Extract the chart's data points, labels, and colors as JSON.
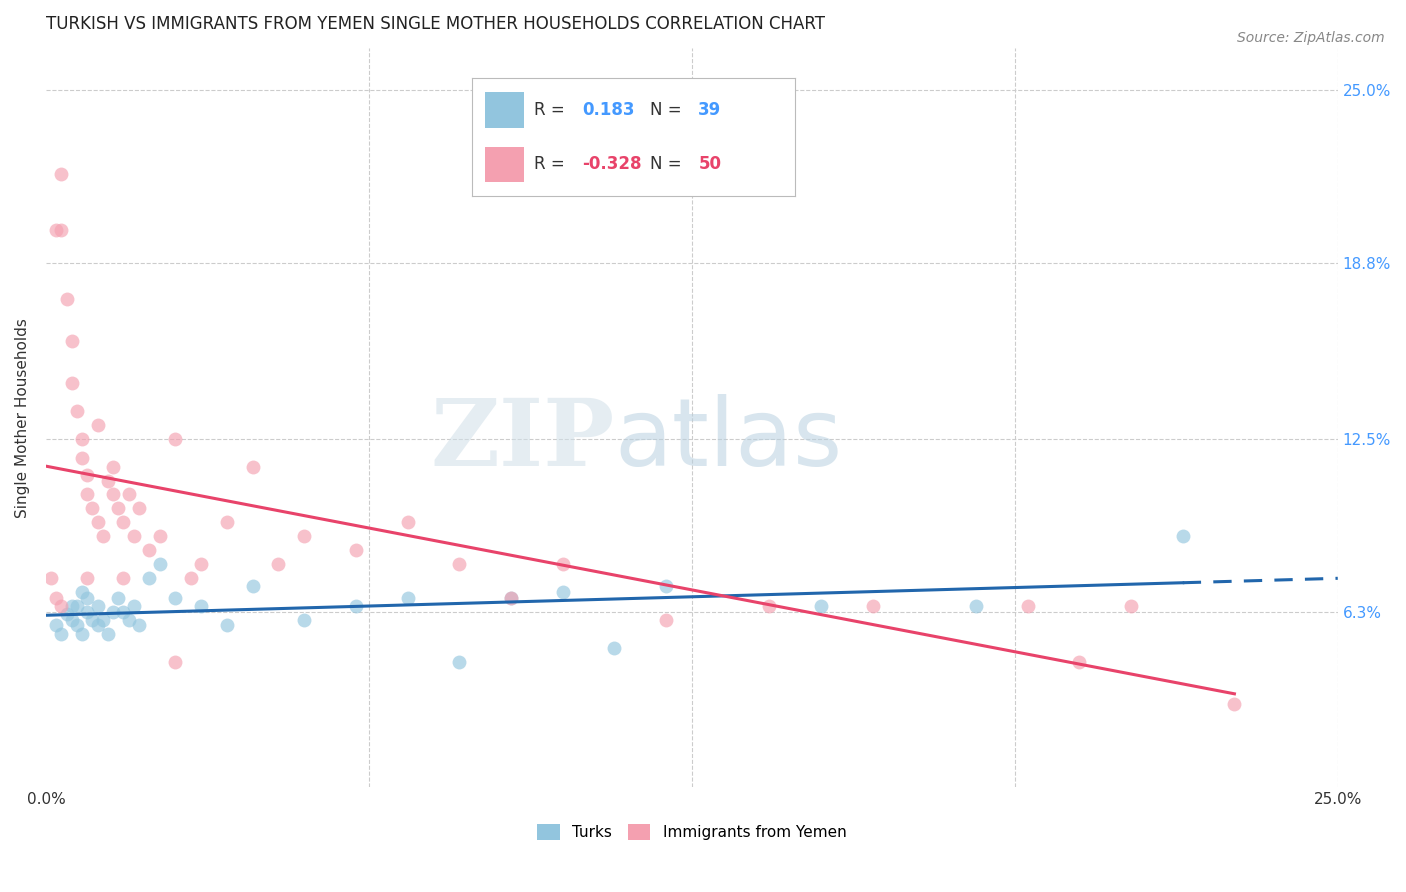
{
  "title": "TURKISH VS IMMIGRANTS FROM YEMEN SINGLE MOTHER HOUSEHOLDS CORRELATION CHART",
  "source": "Source: ZipAtlas.com",
  "ylabel": "Single Mother Households",
  "xlim": [
    0.0,
    0.25
  ],
  "ylim": [
    0.0,
    0.265
  ],
  "yticks": [
    0.0,
    0.063,
    0.125,
    0.188,
    0.25
  ],
  "ytick_labels_right": [
    "",
    "6.3%",
    "12.5%",
    "18.8%",
    "25.0%"
  ],
  "xticks": [
    0.0,
    0.0625,
    0.125,
    0.1875,
    0.25
  ],
  "xtick_labels": [
    "0.0%",
    "",
    "",
    "",
    "25.0%"
  ],
  "legend_R1": "0.183",
  "legend_N1": "39",
  "legend_R2": "-0.328",
  "legend_N2": "50",
  "color_turks": "#92C5DE",
  "color_yemen": "#F4A0B0",
  "line_color_turks": "#2166AC",
  "line_color_yemen": "#E8436A",
  "turks_x": [
    0.002,
    0.003,
    0.004,
    0.005,
    0.005,
    0.006,
    0.006,
    0.007,
    0.007,
    0.008,
    0.008,
    0.009,
    0.01,
    0.01,
    0.011,
    0.012,
    0.013,
    0.014,
    0.015,
    0.016,
    0.017,
    0.018,
    0.02,
    0.022,
    0.025,
    0.03,
    0.035,
    0.04,
    0.05,
    0.06,
    0.07,
    0.08,
    0.09,
    0.1,
    0.11,
    0.12,
    0.15,
    0.18,
    0.22
  ],
  "turks_y": [
    0.058,
    0.055,
    0.062,
    0.065,
    0.06,
    0.058,
    0.065,
    0.055,
    0.07,
    0.063,
    0.068,
    0.06,
    0.065,
    0.058,
    0.06,
    0.055,
    0.063,
    0.068,
    0.063,
    0.06,
    0.065,
    0.058,
    0.075,
    0.08,
    0.068,
    0.065,
    0.058,
    0.072,
    0.06,
    0.065,
    0.068,
    0.045,
    0.068,
    0.07,
    0.05,
    0.072,
    0.065,
    0.065,
    0.09
  ],
  "yemen_x": [
    0.001,
    0.002,
    0.003,
    0.003,
    0.004,
    0.005,
    0.005,
    0.006,
    0.007,
    0.007,
    0.008,
    0.008,
    0.009,
    0.01,
    0.01,
    0.011,
    0.012,
    0.013,
    0.013,
    0.014,
    0.015,
    0.016,
    0.017,
    0.018,
    0.02,
    0.022,
    0.025,
    0.028,
    0.03,
    0.035,
    0.04,
    0.045,
    0.05,
    0.06,
    0.07,
    0.08,
    0.09,
    0.1,
    0.12,
    0.14,
    0.16,
    0.19,
    0.2,
    0.21,
    0.23,
    0.002,
    0.003,
    0.008,
    0.015,
    0.025
  ],
  "yemen_y": [
    0.075,
    0.2,
    0.22,
    0.2,
    0.175,
    0.16,
    0.145,
    0.135,
    0.125,
    0.118,
    0.112,
    0.105,
    0.1,
    0.095,
    0.13,
    0.09,
    0.11,
    0.105,
    0.115,
    0.1,
    0.095,
    0.105,
    0.09,
    0.1,
    0.085,
    0.09,
    0.125,
    0.075,
    0.08,
    0.095,
    0.115,
    0.08,
    0.09,
    0.085,
    0.095,
    0.08,
    0.068,
    0.08,
    0.06,
    0.065,
    0.065,
    0.065,
    0.045,
    0.065,
    0.03,
    0.068,
    0.065,
    0.075,
    0.075,
    0.045
  ]
}
